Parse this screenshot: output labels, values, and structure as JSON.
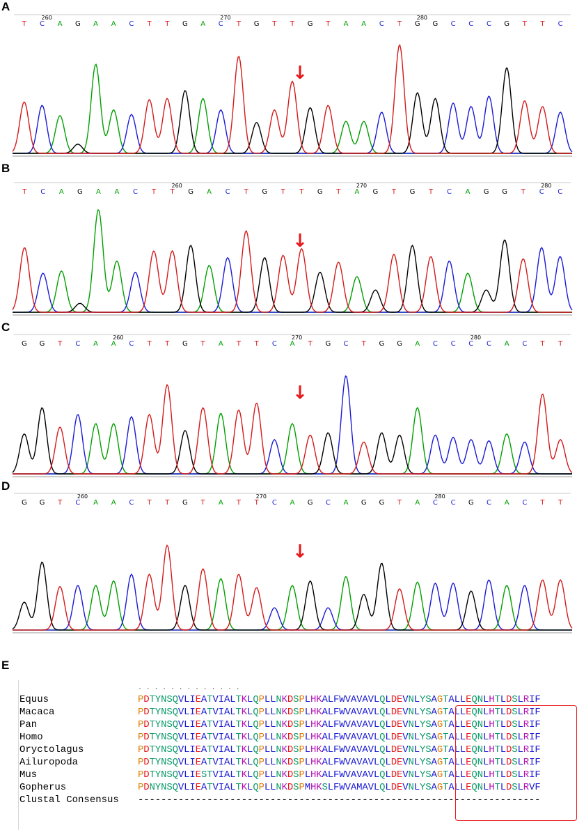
{
  "panels": [
    {
      "label": "A",
      "bases": "TCAGAACTTGACTGTTGTAACTGGCCCGTTC",
      "ticks": [
        [
          "260",
          1
        ],
        [
          "270",
          11
        ],
        [
          "280",
          22
        ]
      ]
    },
    {
      "label": "B",
      "bases": "TCAGAACTTGACTGTTGTAGTGTCAGGTCC",
      "ticks": [
        [
          "260",
          8
        ],
        [
          "270",
          18
        ],
        [
          "280",
          28
        ]
      ]
    },
    {
      "label": "C",
      "bases": "GGTCAACTTGTATTCATGCTGGACCCCACTT",
      "ticks": [
        [
          "260",
          5
        ],
        [
          "270",
          15
        ],
        [
          "280",
          25
        ]
      ]
    },
    {
      "label": "D",
      "bases": "GGTCAACTTGTATTCAGCAGGTACCGCACTT",
      "ticks": [
        [
          "260",
          3
        ],
        [
          "270",
          13
        ],
        [
          "280",
          23
        ]
      ]
    }
  ],
  "colors": {
    "A": "#00a000",
    "C": "#1a1ad6",
    "G": "#000000",
    "T": "#d41a1a",
    "arrow": "#e8181b"
  },
  "arrow_glyph": "↓",
  "alignment": {
    "label": "E",
    "ruler": ". . . . . . . . . . . . .",
    "rows": [
      {
        "name": "Equus",
        "seq": "PDTYNSQVLIEATVIALTKLQPLLNKDSPLHKALFWVAVAVLQLDEVNLYSAGTALLEQNLHTLDSLRIF"
      },
      {
        "name": "Macaca",
        "seq": "PDTYNSQVLIEATVIALTKLQPLLNKDSPLHKALFWVAVAVLQLDEVNLYSAGTALLEQNLHTLDSLRIF"
      },
      {
        "name": "Pan",
        "seq": "PDTYNSQVLIEATVIALTKLQPLLNKDSPLHKALFWVAVAVLQLDEVNLYSAGTALLEQNLHTLDSLRIF"
      },
      {
        "name": "Homo",
        "seq": "PDTYNSQVLIEATVIALTKLQPLLNKDSPLHKALFWVAVAVLQLDEVNLYSAGTALLEQNLHTLDSLRIF"
      },
      {
        "name": "Oryctolagus",
        "seq": "PDTYNSQVLIEATVIALTKLQPLLNKDSPLHKALFWVAVAVLQLDEVNLYSAGTALLEQNLHTLDSLRIF"
      },
      {
        "name": "Ailuropoda",
        "seq": "PDTYNSQVLIEATVIALTKLQPLLNKDSPLHKALFWVAVAVLQLDEVNLYSAGTALLEQNLHTLDSLRIF"
      },
      {
        "name": "Mus",
        "seq": "PDTYNSQVLIESTVIALTKLQPLLNKDSPLHKALFWVAVAVLQLDEVNLYSAGTALLEQNLHTLDSLRIF"
      },
      {
        "name": "Gopherus",
        "seq": "PDNYNSQVLIEATVIALTKLQPLLNKDSPMHKSLFWVAMAVLQLDEVNLYSAGTALLEQNLHTLDSLRVF"
      }
    ],
    "consensus_name": "Clustal Consensus",
    "consensus": "----------------------------------------------------------------------",
    "residue_colors": {
      "acidic": "#e8181b",
      "basic": "#b40fb4",
      "hydrophobic": "#1a1ad6",
      "polar": "#0a9a6a",
      "special": "#e07b00",
      "other": "#444444"
    }
  }
}
